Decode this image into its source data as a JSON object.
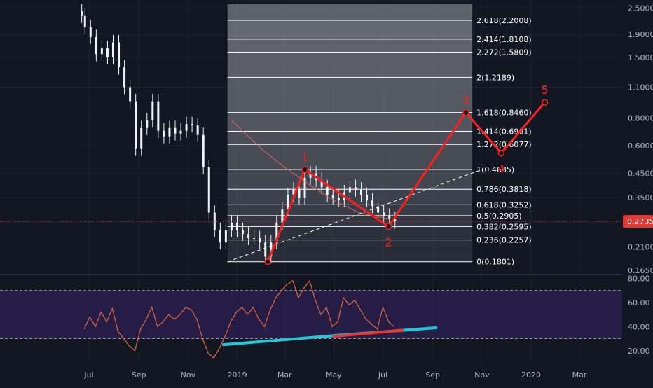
{
  "chart_data": [
    {
      "type": "line",
      "panel": "price",
      "y_scale": "log",
      "ylim": [
        0.16,
        2.6
      ],
      "y_ticks": [
        "2.5000",
        "1.9000",
        "1.5000",
        "1.1000",
        "0.8000",
        "0.6000",
        "0.4500",
        "0.3500",
        "0.2735",
        "0.2100",
        "0.1650"
      ],
      "last_price": 0.2735,
      "last_price_label": "0.2735",
      "x_labels": [
        "Jul",
        "Sep",
        "Nov",
        "2019",
        "Mar",
        "May",
        "Jul",
        "Sep",
        "Nov",
        "2020",
        "Mar"
      ],
      "x_label_dates": [
        "2018-07-01",
        "2018-09-01",
        "2018-11-01",
        "2019-01-01",
        "2019-03-01",
        "2019-05-01",
        "2019-07-01",
        "2019-09-01",
        "2019-11-01",
        "2020-01-01",
        "2020-03-01"
      ],
      "xlim": [
        "2018-06-01",
        "2020-04-15"
      ],
      "price_series": [
        {
          "x": "2018-06-22",
          "y": 2.3
        },
        {
          "x": "2018-06-26",
          "y": 2.05
        },
        {
          "x": "2018-07-03",
          "y": 1.85
        },
        {
          "x": "2018-07-10",
          "y": 1.55
        },
        {
          "x": "2018-07-17",
          "y": 1.65
        },
        {
          "x": "2018-07-24",
          "y": 1.5
        },
        {
          "x": "2018-07-31",
          "y": 1.75
        },
        {
          "x": "2018-08-07",
          "y": 1.35
        },
        {
          "x": "2018-08-14",
          "y": 1.1
        },
        {
          "x": "2018-08-21",
          "y": 0.95
        },
        {
          "x": "2018-08-28",
          "y": 0.58
        },
        {
          "x": "2018-09-04",
          "y": 0.72
        },
        {
          "x": "2018-09-11",
          "y": 0.78
        },
        {
          "x": "2018-09-18",
          "y": 0.95
        },
        {
          "x": "2018-09-25",
          "y": 0.7
        },
        {
          "x": "2018-10-02",
          "y": 0.66
        },
        {
          "x": "2018-10-09",
          "y": 0.72
        },
        {
          "x": "2018-10-16",
          "y": 0.68
        },
        {
          "x": "2018-10-23",
          "y": 0.7
        },
        {
          "x": "2018-10-30",
          "y": 0.75
        },
        {
          "x": "2018-11-06",
          "y": 0.74
        },
        {
          "x": "2018-11-13",
          "y": 0.67
        },
        {
          "x": "2018-11-20",
          "y": 0.48
        },
        {
          "x": "2018-11-27",
          "y": 0.3
        },
        {
          "x": "2018-12-04",
          "y": 0.25
        },
        {
          "x": "2018-12-11",
          "y": 0.22
        },
        {
          "x": "2018-12-18",
          "y": 0.25
        },
        {
          "x": "2018-12-25",
          "y": 0.27
        },
        {
          "x": "2019-01-01",
          "y": 0.25
        },
        {
          "x": "2019-01-08",
          "y": 0.24
        },
        {
          "x": "2019-01-15",
          "y": 0.23
        },
        {
          "x": "2019-01-22",
          "y": 0.23
        },
        {
          "x": "2019-01-29",
          "y": 0.22
        },
        {
          "x": "2019-02-05",
          "y": 0.19
        },
        {
          "x": "2019-02-12",
          "y": 0.22
        },
        {
          "x": "2019-02-19",
          "y": 0.27
        },
        {
          "x": "2019-02-26",
          "y": 0.31
        },
        {
          "x": "2019-03-05",
          "y": 0.36
        },
        {
          "x": "2019-03-12",
          "y": 0.38
        },
        {
          "x": "2019-03-19",
          "y": 0.35
        },
        {
          "x": "2019-03-26",
          "y": 0.43
        },
        {
          "x": "2019-04-02",
          "y": 0.45
        },
        {
          "x": "2019-04-09",
          "y": 0.42
        },
        {
          "x": "2019-04-16",
          "y": 0.39
        },
        {
          "x": "2019-04-23",
          "y": 0.36
        },
        {
          "x": "2019-04-30",
          "y": 0.35
        },
        {
          "x": "2019-05-07",
          "y": 0.34
        },
        {
          "x": "2019-05-14",
          "y": 0.37
        },
        {
          "x": "2019-05-21",
          "y": 0.39
        },
        {
          "x": "2019-05-28",
          "y": 0.38
        },
        {
          "x": "2019-06-04",
          "y": 0.36
        },
        {
          "x": "2019-06-11",
          "y": 0.34
        },
        {
          "x": "2019-06-18",
          "y": 0.32
        },
        {
          "x": "2019-06-25",
          "y": 0.3
        },
        {
          "x": "2019-07-02",
          "y": 0.29
        },
        {
          "x": "2019-07-09",
          "y": 0.28
        },
        {
          "x": "2019-07-16",
          "y": 0.2735
        }
      ],
      "moving_average": [
        {
          "x": "2018-12-25",
          "y": 0.78
        },
        {
          "x": "2019-01-15",
          "y": 0.66
        },
        {
          "x": "2019-02-05",
          "y": 0.56
        },
        {
          "x": "2019-03-01",
          "y": 0.48
        },
        {
          "x": "2019-04-01",
          "y": 0.4
        },
        {
          "x": "2019-05-01",
          "y": 0.34
        },
        {
          "x": "2019-06-01",
          "y": 0.3
        },
        {
          "x": "2019-07-10",
          "y": 0.28
        }
      ],
      "fib_levels": [
        {
          "label": "0(0.1801)",
          "value": 0.1801
        },
        {
          "label": "0.236(0.2257)",
          "value": 0.2257
        },
        {
          "label": "0.382(0.2595)",
          "value": 0.2595
        },
        {
          "label": "0.5(0.2905)",
          "value": 0.2905
        },
        {
          "label": "0.618(0.3252)",
          "value": 0.3252
        },
        {
          "label": "0.786(0.3818)",
          "value": 0.3818
        },
        {
          "label": "1(0.4685)",
          "value": 0.4685
        },
        {
          "label": "1.272(0.6077)",
          "value": 0.6077
        },
        {
          "label": "1.414(0.6961)",
          "value": 0.6961
        },
        {
          "label": "1.618(0.8460)",
          "value": 0.846
        },
        {
          "label": "2(1.2189)",
          "value": 1.2189
        },
        {
          "label": "2.272(1.5809)",
          "value": 1.5809
        },
        {
          "label": "2.414(1.8108)",
          "value": 1.8108
        },
        {
          "label": "2.618(2.2008)",
          "value": 2.2008
        }
      ],
      "fib_x_range": [
        "2018-12-20",
        "2019-10-20"
      ],
      "wave_count": [
        {
          "label": "",
          "x": "2019-02-08",
          "y": 0.1801
        },
        {
          "label": "1",
          "x": "2019-03-26",
          "y": 0.4685
        },
        {
          "label": "2",
          "x": "2019-07-08",
          "y": 0.2595
        },
        {
          "label": "3",
          "x": "2019-10-12",
          "y": 0.846
        },
        {
          "label": "4",
          "x": "2019-11-25",
          "y": 0.555
        },
        {
          "label": "5",
          "x": "2020-01-18",
          "y": 0.94
        }
      ],
      "trendline": [
        {
          "x": "2018-12-20",
          "y": 0.1801
        },
        {
          "x": "2019-11-01",
          "y": 0.4685
        }
      ]
    },
    {
      "type": "line",
      "panel": "oscillator",
      "ylim": [
        10,
        82
      ],
      "y_ticks": [
        "80.00",
        "60.00",
        "40.00",
        "20.00"
      ],
      "bands": [
        70,
        30
      ],
      "series": [
        {
          "x": "2018-06-25",
          "y": 38
        },
        {
          "x": "2018-07-02",
          "y": 48
        },
        {
          "x": "2018-07-09",
          "y": 40
        },
        {
          "x": "2018-07-16",
          "y": 52
        },
        {
          "x": "2018-07-23",
          "y": 44
        },
        {
          "x": "2018-07-30",
          "y": 55
        },
        {
          "x": "2018-08-06",
          "y": 36
        },
        {
          "x": "2018-08-13",
          "y": 30
        },
        {
          "x": "2018-08-20",
          "y": 24
        },
        {
          "x": "2018-08-27",
          "y": 20
        },
        {
          "x": "2018-09-03",
          "y": 38
        },
        {
          "x": "2018-09-10",
          "y": 46
        },
        {
          "x": "2018-09-17",
          "y": 56
        },
        {
          "x": "2018-09-24",
          "y": 40
        },
        {
          "x": "2018-10-01",
          "y": 44
        },
        {
          "x": "2018-10-08",
          "y": 50
        },
        {
          "x": "2018-10-15",
          "y": 46
        },
        {
          "x": "2018-10-22",
          "y": 50
        },
        {
          "x": "2018-10-29",
          "y": 56
        },
        {
          "x": "2018-11-05",
          "y": 54
        },
        {
          "x": "2018-11-12",
          "y": 46
        },
        {
          "x": "2018-11-19",
          "y": 30
        },
        {
          "x": "2018-11-26",
          "y": 18
        },
        {
          "x": "2018-12-03",
          "y": 14
        },
        {
          "x": "2018-12-10",
          "y": 22
        },
        {
          "x": "2018-12-17",
          "y": 32
        },
        {
          "x": "2018-12-24",
          "y": 44
        },
        {
          "x": "2018-12-31",
          "y": 52
        },
        {
          "x": "2019-01-07",
          "y": 56
        },
        {
          "x": "2019-01-14",
          "y": 50
        },
        {
          "x": "2019-01-21",
          "y": 56
        },
        {
          "x": "2019-01-28",
          "y": 46
        },
        {
          "x": "2019-02-04",
          "y": 40
        },
        {
          "x": "2019-02-11",
          "y": 54
        },
        {
          "x": "2019-02-18",
          "y": 64
        },
        {
          "x": "2019-02-25",
          "y": 70
        },
        {
          "x": "2019-03-04",
          "y": 75
        },
        {
          "x": "2019-03-11",
          "y": 78
        },
        {
          "x": "2019-03-18",
          "y": 64
        },
        {
          "x": "2019-03-25",
          "y": 72
        },
        {
          "x": "2019-04-01",
          "y": 78
        },
        {
          "x": "2019-04-08",
          "y": 62
        },
        {
          "x": "2019-04-15",
          "y": 50
        },
        {
          "x": "2019-04-22",
          "y": 56
        },
        {
          "x": "2019-04-29",
          "y": 40
        },
        {
          "x": "2019-05-06",
          "y": 44
        },
        {
          "x": "2019-05-13",
          "y": 64
        },
        {
          "x": "2019-05-20",
          "y": 58
        },
        {
          "x": "2019-05-27",
          "y": 62
        },
        {
          "x": "2019-06-03",
          "y": 54
        },
        {
          "x": "2019-06-10",
          "y": 46
        },
        {
          "x": "2019-06-17",
          "y": 42
        },
        {
          "x": "2019-06-24",
          "y": 38
        },
        {
          "x": "2019-07-01",
          "y": 56
        },
        {
          "x": "2019-07-08",
          "y": 44
        },
        {
          "x": "2019-07-15",
          "y": 40
        }
      ],
      "divergence_lines": [
        {
          "color": "#26c6da",
          "points": [
            {
              "x": "2018-12-15",
              "y": 25
            },
            {
              "x": "2019-05-10",
              "y": 33
            },
            {
              "x": "2019-09-05",
              "y": 39
            }
          ]
        },
        {
          "color": "#e53935",
          "points": [
            {
              "x": "2019-05-01",
              "y": 32
            },
            {
              "x": "2019-07-25",
              "y": 37
            }
          ]
        }
      ]
    }
  ],
  "colors": {
    "background": "#131722",
    "grid": "#1e222d",
    "candles": "#f0f3fa",
    "fib_fill": "#8f939a",
    "wave": "#ff1e1e",
    "ma": "#e06666",
    "oscillator": "#e0673c",
    "osc_band": "#2a1e4e",
    "price_tag": "#e53935",
    "text": "#b2b5be"
  }
}
